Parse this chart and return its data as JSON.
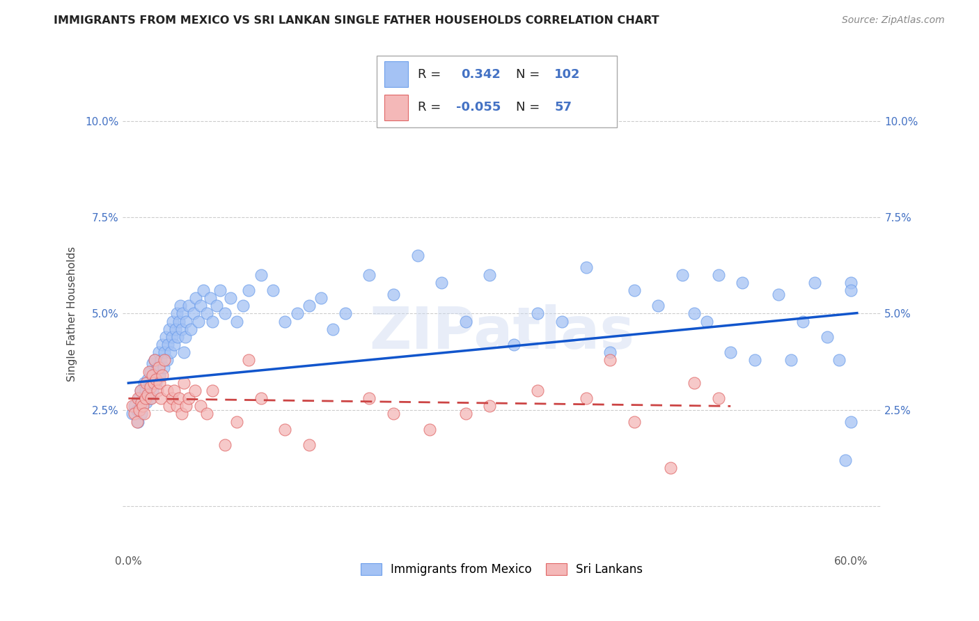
{
  "title": "IMMIGRANTS FROM MEXICO VS SRI LANKAN SINGLE FATHER HOUSEHOLDS CORRELATION CHART",
  "source": "Source: ZipAtlas.com",
  "ylabel": "Single Father Households",
  "xlim": [
    -0.005,
    0.625
  ],
  "ylim": [
    -0.012,
    0.112
  ],
  "xticks": [
    0.0,
    0.1,
    0.2,
    0.3,
    0.4,
    0.5,
    0.6
  ],
  "xticklabels": [
    "0.0%",
    "",
    "",
    "",
    "",
    "",
    "60.0%"
  ],
  "yticks": [
    0.0,
    0.025,
    0.05,
    0.075,
    0.1
  ],
  "yticklabels": [
    "",
    "2.5%",
    "5.0%",
    "7.5%",
    "10.0%"
  ],
  "blue_color": "#a4c2f4",
  "pink_color": "#f4b8b8",
  "blue_edge_color": "#6d9eeb",
  "pink_edge_color": "#e06666",
  "blue_line_color": "#1155cc",
  "pink_line_color": "#cc4444",
  "legend_label_blue": "Immigrants from Mexico",
  "legend_label_pink": "Sri Lankans",
  "R_blue": "0.342",
  "N_blue": "102",
  "R_pink": "-0.055",
  "N_pink": "57",
  "watermark": "ZIPatlas",
  "blue_x": [
    0.003,
    0.005,
    0.007,
    0.008,
    0.009,
    0.01,
    0.01,
    0.011,
    0.012,
    0.013,
    0.014,
    0.015,
    0.016,
    0.017,
    0.018,
    0.018,
    0.019,
    0.02,
    0.02,
    0.021,
    0.022,
    0.023,
    0.024,
    0.025,
    0.026,
    0.027,
    0.028,
    0.029,
    0.03,
    0.031,
    0.032,
    0.033,
    0.034,
    0.035,
    0.036,
    0.037,
    0.038,
    0.039,
    0.04,
    0.041,
    0.042,
    0.043,
    0.044,
    0.045,
    0.046,
    0.047,
    0.048,
    0.05,
    0.052,
    0.054,
    0.056,
    0.058,
    0.06,
    0.062,
    0.065,
    0.068,
    0.07,
    0.073,
    0.076,
    0.08,
    0.085,
    0.09,
    0.095,
    0.1,
    0.11,
    0.12,
    0.13,
    0.14,
    0.15,
    0.16,
    0.17,
    0.18,
    0.2,
    0.22,
    0.24,
    0.26,
    0.28,
    0.3,
    0.32,
    0.34,
    0.36,
    0.38,
    0.4,
    0.42,
    0.44,
    0.46,
    0.47,
    0.48,
    0.49,
    0.5,
    0.51,
    0.52,
    0.54,
    0.55,
    0.56,
    0.57,
    0.58,
    0.59,
    0.595,
    0.6,
    0.6,
    0.6
  ],
  "blue_y": [
    0.024,
    0.026,
    0.025,
    0.022,
    0.028,
    0.03,
    0.026,
    0.024,
    0.028,
    0.032,
    0.03,
    0.027,
    0.033,
    0.031,
    0.035,
    0.028,
    0.032,
    0.037,
    0.03,
    0.034,
    0.038,
    0.032,
    0.036,
    0.04,
    0.034,
    0.038,
    0.042,
    0.036,
    0.04,
    0.044,
    0.038,
    0.042,
    0.046,
    0.04,
    0.044,
    0.048,
    0.042,
    0.046,
    0.05,
    0.044,
    0.048,
    0.052,
    0.046,
    0.05,
    0.04,
    0.044,
    0.048,
    0.052,
    0.046,
    0.05,
    0.054,
    0.048,
    0.052,
    0.056,
    0.05,
    0.054,
    0.048,
    0.052,
    0.056,
    0.05,
    0.054,
    0.048,
    0.052,
    0.056,
    0.06,
    0.056,
    0.048,
    0.05,
    0.052,
    0.054,
    0.046,
    0.05,
    0.06,
    0.055,
    0.065,
    0.058,
    0.048,
    0.06,
    0.042,
    0.05,
    0.048,
    0.062,
    0.04,
    0.056,
    0.052,
    0.06,
    0.05,
    0.048,
    0.06,
    0.04,
    0.058,
    0.038,
    0.055,
    0.038,
    0.048,
    0.058,
    0.044,
    0.038,
    0.012,
    0.058,
    0.022,
    0.056
  ],
  "pink_x": [
    0.003,
    0.005,
    0.007,
    0.008,
    0.009,
    0.01,
    0.011,
    0.012,
    0.013,
    0.014,
    0.015,
    0.016,
    0.017,
    0.018,
    0.019,
    0.02,
    0.021,
    0.022,
    0.023,
    0.024,
    0.025,
    0.026,
    0.027,
    0.028,
    0.03,
    0.032,
    0.034,
    0.036,
    0.038,
    0.04,
    0.042,
    0.044,
    0.046,
    0.048,
    0.05,
    0.055,
    0.06,
    0.065,
    0.07,
    0.08,
    0.09,
    0.1,
    0.11,
    0.13,
    0.15,
    0.2,
    0.22,
    0.25,
    0.28,
    0.3,
    0.34,
    0.38,
    0.4,
    0.42,
    0.45,
    0.47,
    0.49
  ],
  "pink_y": [
    0.026,
    0.024,
    0.022,
    0.028,
    0.025,
    0.03,
    0.027,
    0.026,
    0.024,
    0.028,
    0.032,
    0.029,
    0.035,
    0.031,
    0.028,
    0.034,
    0.032,
    0.038,
    0.033,
    0.03,
    0.036,
    0.032,
    0.028,
    0.034,
    0.038,
    0.03,
    0.026,
    0.028,
    0.03,
    0.026,
    0.028,
    0.024,
    0.032,
    0.026,
    0.028,
    0.03,
    0.026,
    0.024,
    0.03,
    0.016,
    0.022,
    0.038,
    0.028,
    0.02,
    0.016,
    0.028,
    0.024,
    0.02,
    0.024,
    0.026,
    0.03,
    0.028,
    0.038,
    0.022,
    0.01,
    0.032,
    0.028
  ]
}
